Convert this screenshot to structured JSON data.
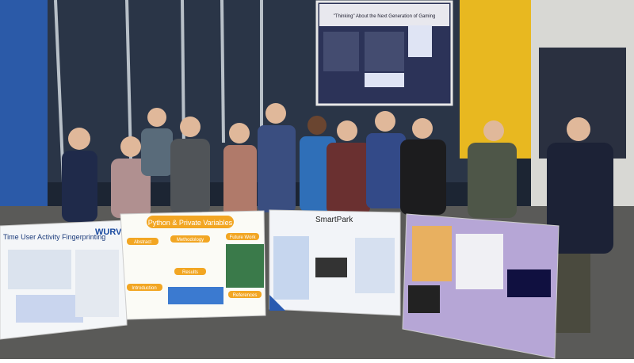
{
  "posters": [
    {
      "title": "Time User Activity Fingerprinting",
      "logo": "WURVA"
    },
    {
      "title": "Python & Private Variables",
      "sections": [
        "Abstract",
        "Methodology",
        "Future Work",
        "Results",
        "Introduction",
        "References"
      ]
    },
    {
      "title": "SmartPark"
    },
    {
      "title": "\"Thinking\" About the Next Generation of Gaming"
    }
  ]
}
